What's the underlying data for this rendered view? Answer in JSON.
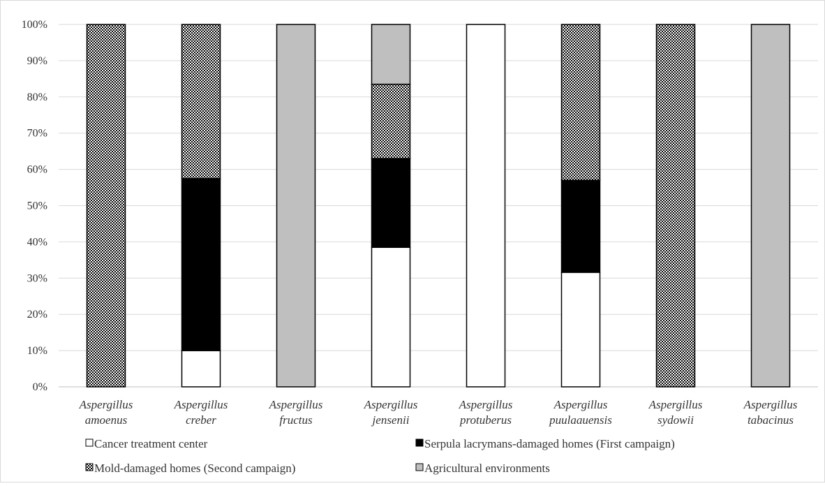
{
  "chart_data": {
    "type": "bar",
    "stacked": true,
    "stack_mode": "percent",
    "title": "",
    "xlabel": "",
    "ylabel": "",
    "ylim": [
      0,
      100
    ],
    "yticks": [
      "0%",
      "10%",
      "20%",
      "30%",
      "40%",
      "50%",
      "60%",
      "70%",
      "80%",
      "90%",
      "100%"
    ],
    "grid": true,
    "legend_position": "bottom",
    "categories": [
      [
        "Aspergillus",
        "amoenus"
      ],
      [
        "Aspergillus",
        "creber"
      ],
      [
        "Aspergillus",
        "fructus"
      ],
      [
        "Aspergillus",
        "jensenii"
      ],
      [
        "Aspergillus",
        "protuberus"
      ],
      [
        "Aspergillus",
        "puulaauensis"
      ],
      [
        "Aspergillus",
        "sydowii"
      ],
      [
        "Aspergillus",
        "tabacinus"
      ]
    ],
    "series": [
      {
        "name": "Cancer treatment center",
        "fill": "white",
        "values": [
          0,
          10,
          0,
          38.5,
          100,
          31.6,
          0,
          0
        ]
      },
      {
        "name": "Serpula lacrymans-damaged homes (First campaign)",
        "fill": "black",
        "values": [
          0,
          47.5,
          0,
          24.5,
          0,
          25.4,
          0,
          0
        ]
      },
      {
        "name": "Mold-damaged homes (Second campaign)",
        "fill": "checker",
        "values": [
          100,
          42.5,
          0,
          20.5,
          0,
          43,
          100,
          0
        ]
      },
      {
        "name": "Agricultural environments",
        "fill": "gray",
        "values": [
          0,
          0,
          100,
          16.5,
          0,
          0,
          0,
          100
        ]
      }
    ],
    "colors": {
      "white": "#ffffff",
      "black": "#000000",
      "gray": "#bfbfbf",
      "grid": "#d9d9d9",
      "axis": "#bfbfbf",
      "text": "#333333"
    }
  }
}
